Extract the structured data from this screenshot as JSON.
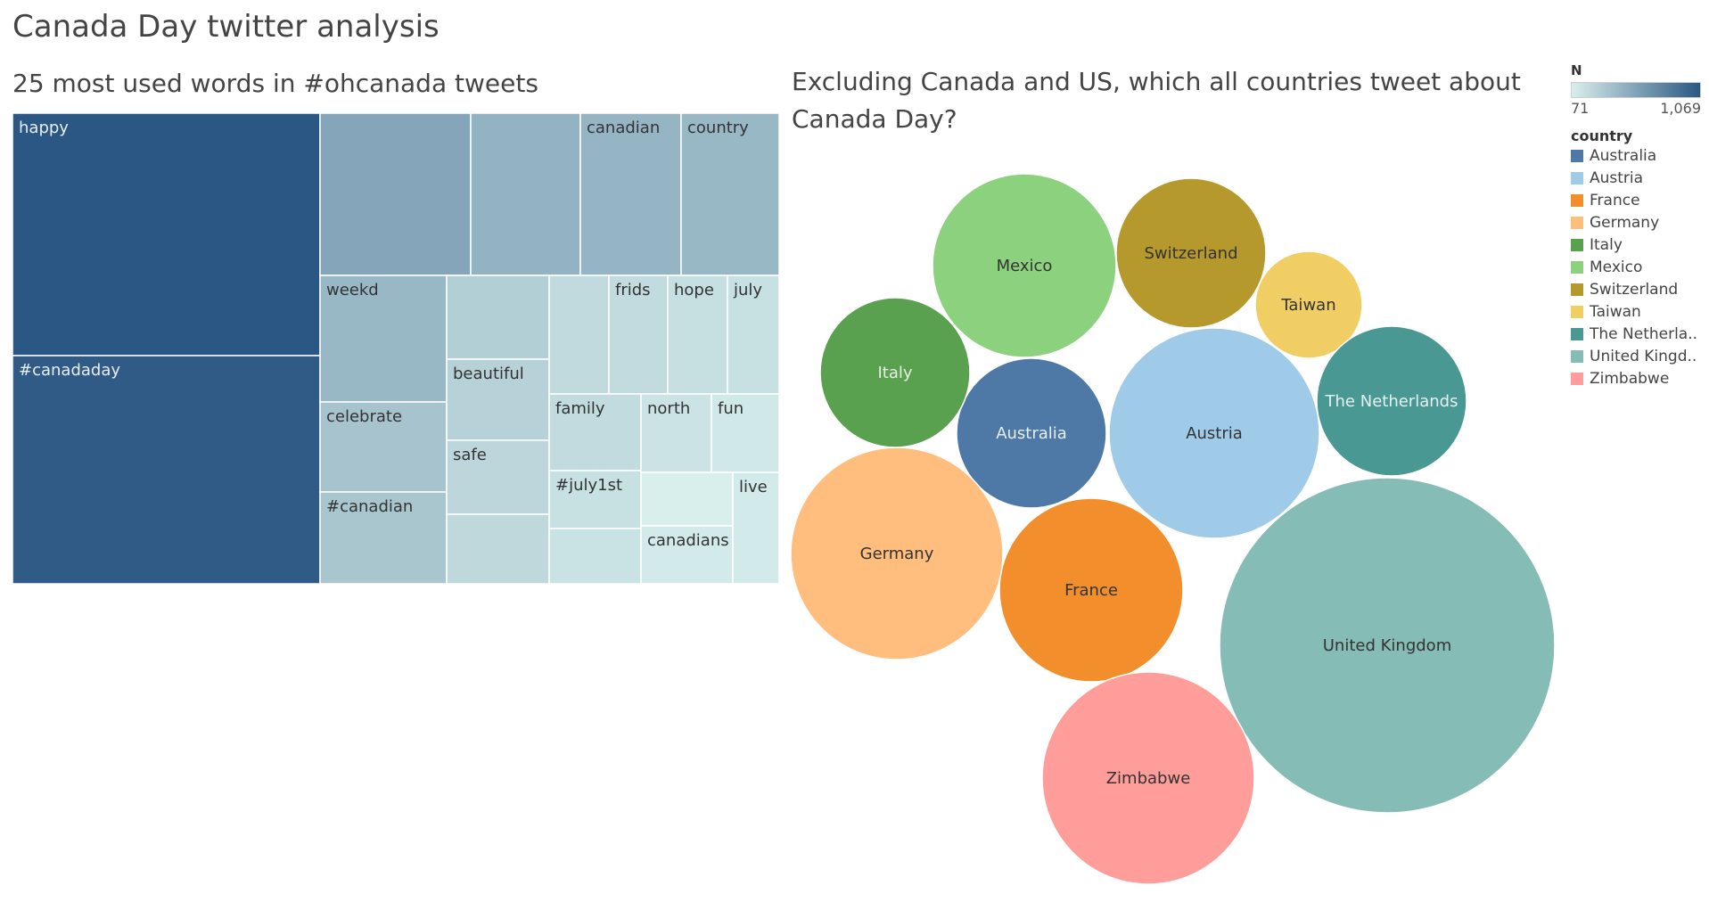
{
  "page_title": "Canada Day twitter analysis",
  "chart_data": [
    {
      "type": "treemap",
      "title": "25 most used words in #ohcanada tweets",
      "color_legend": {
        "title": "N",
        "min": 71,
        "max": 1069,
        "min_label": "71",
        "max_label": "1,069",
        "min_color": "#d8efec",
        "max_color": "#2a5783"
      },
      "items": [
        {
          "word": "happy",
          "n": 1069,
          "label_visible": true
        },
        {
          "word": "#canadaday",
          "n": 1014,
          "label_visible": true
        },
        {
          "word": "",
          "n": 300,
          "label_visible": false
        },
        {
          "word": "",
          "n": 230,
          "label_visible": false
        },
        {
          "word": "canadian",
          "n": 215,
          "label_visible": true
        },
        {
          "word": "country",
          "n": 200,
          "label_visible": true
        },
        {
          "word": "weekd",
          "n": 200,
          "label_visible": true
        },
        {
          "word": "celebrate",
          "n": 150,
          "label_visible": true
        },
        {
          "word": "#canadian",
          "n": 145,
          "label_visible": true
        },
        {
          "word": "",
          "n": 116,
          "label_visible": false
        },
        {
          "word": "beautiful",
          "n": 110,
          "label_visible": true
        },
        {
          "word": "safe",
          "n": 97,
          "label_visible": true
        },
        {
          "word": "",
          "n": 93,
          "label_visible": false
        },
        {
          "word": "",
          "n": 90,
          "label_visible": false
        },
        {
          "word": "frids",
          "n": 88,
          "label_visible": true
        },
        {
          "word": "hope",
          "n": 82,
          "label_visible": true
        },
        {
          "word": "july",
          "n": 80,
          "label_visible": true
        },
        {
          "word": "family",
          "n": 88,
          "label_visible": true
        },
        {
          "word": "#july1st",
          "n": 80,
          "label_visible": true
        },
        {
          "word": "",
          "n": 78,
          "label_visible": false
        },
        {
          "word": "north",
          "n": 77,
          "label_visible": true
        },
        {
          "word": "fun",
          "n": 73,
          "label_visible": true
        },
        {
          "word": "",
          "n": 71,
          "label_visible": false
        },
        {
          "word": "canadians",
          "n": 72,
          "label_visible": true
        },
        {
          "word": "live",
          "n": 72,
          "label_visible": true
        }
      ]
    },
    {
      "type": "bubble",
      "title": "Excluding Canada and US, which all countries tweet about Canada Day?",
      "legend_title": "country",
      "legend_items": [
        "Australia",
        "Austria",
        "France",
        "Germany",
        "Italy",
        "Mexico",
        "Switzerland",
        "Taiwan",
        "The Netherla..",
        "United Kingd..",
        "Zimbabwe"
      ],
      "bubbles": [
        {
          "country": "Australia",
          "value": 3,
          "color": "#4e79a7",
          "text_color": "#e6edf5"
        },
        {
          "country": "Austria",
          "value": 6.4,
          "color": "#a0cbe8",
          "text_color": "#333333"
        },
        {
          "country": "France",
          "value": 4.5,
          "color": "#f28e2b",
          "text_color": "#333333"
        },
        {
          "country": "Germany",
          "value": 6.4,
          "color": "#ffbe7d",
          "text_color": "#333333"
        },
        {
          "country": "Italy",
          "value": 3.2,
          "color": "#59a14f",
          "text_color": "#e6f1e4"
        },
        {
          "country": "Mexico",
          "value": 4.6,
          "color": "#8cd17d",
          "text_color": "#333333"
        },
        {
          "country": "Switzerland",
          "value": 3.2,
          "color": "#b6992d",
          "text_color": "#333333"
        },
        {
          "country": "Taiwan",
          "value": 1.6,
          "color": "#f1ce63",
          "text_color": "#333333"
        },
        {
          "country": "The Netherlands",
          "value": 3.2,
          "color": "#499894",
          "text_color": "#e5f2f1"
        },
        {
          "country": "United Kingdom",
          "value": 16.2,
          "color": "#86bcb6",
          "text_color": "#333333"
        },
        {
          "country": "Zimbabwe",
          "value": 6.4,
          "color": "#ff9d9a",
          "text_color": "#333333"
        }
      ]
    }
  ]
}
